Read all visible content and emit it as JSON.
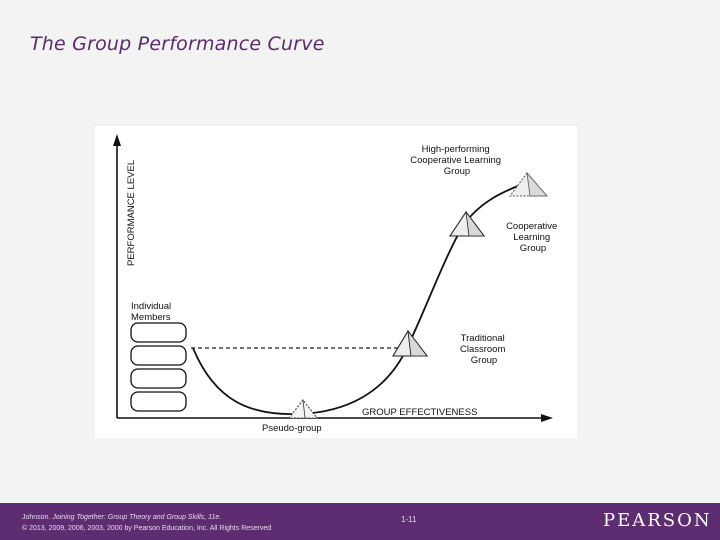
{
  "slide": {
    "title": "The Group Performance Curve"
  },
  "diagram": {
    "y_axis_label": "PERFORMANCE LEVEL",
    "x_axis_label": "GROUP EFFECTIVENESS",
    "individual_members_label": "Individual Members",
    "stages": [
      {
        "id": "pseudo",
        "label": "Pseudo-group"
      },
      {
        "id": "traditional",
        "label": "Traditional Classroom Group"
      },
      {
        "id": "cooperative",
        "label": "Cooperative Learning Group"
      },
      {
        "id": "high",
        "label": "High-performing Cooperative Learning Group"
      }
    ]
  },
  "footer": {
    "citation_prefix": "Johnson. ",
    "citation_title": "Joining Together: Group Theory and Group Skills, 11e.",
    "copyright": "© 2013, 2009, 2006, 2003, 2000 by Pearson Education, Inc. All Rights Reserved",
    "page_number": "1-11",
    "publisher": "PEARSON"
  }
}
